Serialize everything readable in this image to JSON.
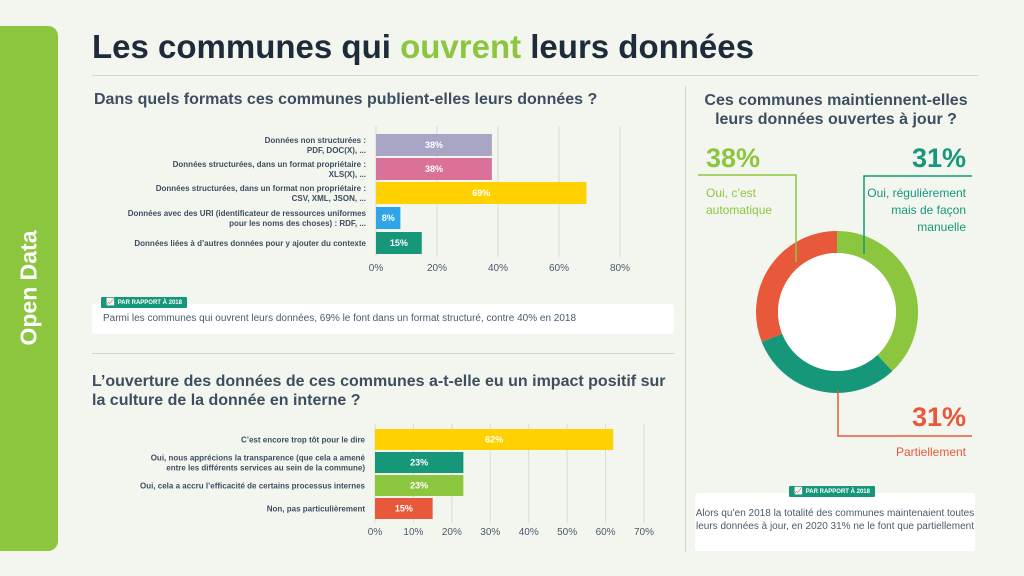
{
  "side_tab": "Open Data",
  "title": {
    "part1": "Les communes qui ",
    "highlight": "ouvrent",
    "part2": " leurs données"
  },
  "section1": {
    "question": "Dans quels formats ces communes publient-elles leurs données ?",
    "badge": "PAR RAPPORT À 2018",
    "note": "Parmi les communes qui ouvrent leurs données, 69% le font dans un format structuré, contre 40% en 2018"
  },
  "section2": {
    "question": "L’ouverture des données de ces communes a-t-elle eu un impact positif sur la culture de la donnée en interne ?"
  },
  "section3": {
    "question": "Ces communes maintiennent-elles leurs données ouvertes à jour ?",
    "badge": "PAR RAPPORT À 2018",
    "note": "Alors qu’en 2018 la totalité des communes maintenaient toutes leurs données à jour, en 2020 31% ne le font que partiellement"
  },
  "colors": {
    "green": "#8cc63f",
    "teal": "#17977a",
    "red": "#e8583a",
    "lavender": "#a9a5c5",
    "pink": "#d97199",
    "yellow": "#ffd100",
    "blue": "#2fa4e7"
  },
  "chart_data": [
    {
      "type": "bar",
      "orientation": "horizontal",
      "categories": [
        [
          "Données non structurées :",
          "PDF, DOC(X), ..."
        ],
        [
          "Données structurées, dans un format propriétaire :",
          "XLS(X), ..."
        ],
        [
          "Données structurées, dans un format non propriétaire :",
          "CSV, XML, JSON, ..."
        ],
        [
          "Données avec des URI (identificateur de ressources uniformes",
          "pour les noms des choses) : RDF, ..."
        ],
        [
          "Données liées à d’autres données pour y ajouter du contexte"
        ]
      ],
      "values": [
        38,
        38,
        69,
        8,
        15
      ],
      "labels": [
        "38%",
        "38%",
        "69%",
        "8%",
        "15%"
      ],
      "colors": [
        "#a9a5c5",
        "#d97199",
        "#ffd100",
        "#2fa4e7",
        "#17977a"
      ],
      "xlim": [
        0,
        80
      ],
      "ticks": [
        "0%",
        "20%",
        "40%",
        "60%",
        "80%"
      ],
      "grid": true
    },
    {
      "type": "bar",
      "orientation": "horizontal",
      "categories": [
        [
          "C’est encore trop tôt pour le dire"
        ],
        [
          "Oui, nous apprécions la transparence (que cela a amené",
          "entre les différents services au sein de la commune)"
        ],
        [
          "Oui, cela a accru l’efficacité de certains processus internes"
        ],
        [
          "Non, pas particulièrement"
        ]
      ],
      "values": [
        62,
        23,
        23,
        15
      ],
      "labels": [
        "62%",
        "23%",
        "23%",
        "15%"
      ],
      "colors": [
        "#ffd100",
        "#17977a",
        "#8cc63f",
        "#e8583a"
      ],
      "xlim": [
        0,
        70
      ],
      "ticks": [
        "0%",
        "10%",
        "20%",
        "30%",
        "40%",
        "50%",
        "60%",
        "70%"
      ],
      "grid": true
    },
    {
      "type": "pie",
      "donut": true,
      "categories": [
        "Oui, c’est automatique",
        "Oui, régulièrement mais de façon manuelle",
        "Partiellement"
      ],
      "values": [
        38,
        31,
        31
      ],
      "labels": [
        "38%",
        "31%",
        "31%"
      ],
      "colors": [
        "#8cc63f",
        "#17977a",
        "#e8583a"
      ]
    }
  ]
}
